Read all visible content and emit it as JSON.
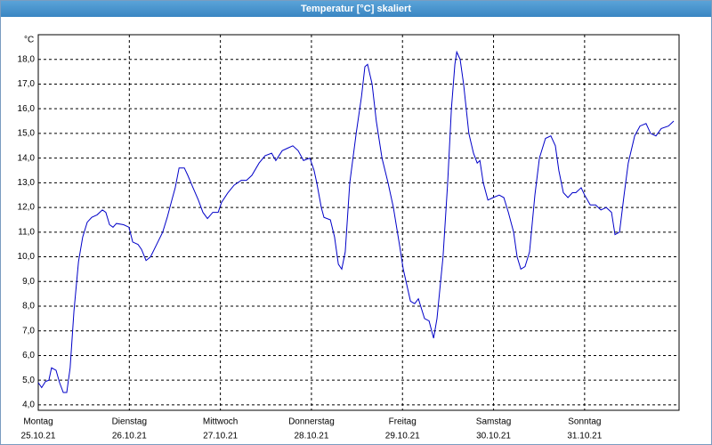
{
  "window_title": "Temperatur [°C] skaliert",
  "chart_data": {
    "type": "line",
    "y_unit": "°C",
    "x": [
      0,
      0.9,
      1.9,
      2.8,
      3.5,
      4.7,
      5.6,
      6.6,
      7.5,
      8.4,
      9.4,
      10.6,
      11.7,
      12.9,
      14.1,
      15.5,
      16.9,
      17.8,
      18.8,
      19.7,
      20.6,
      22.5,
      23.9,
      24.9,
      26.3,
      27.2,
      28.4,
      29.6,
      31.2,
      32.8,
      34.0,
      35.2,
      36.1,
      37.1,
      38.5,
      39.4,
      40.8,
      42.2,
      43.4,
      44.6,
      46.0,
      47.4,
      48.3,
      50.0,
      51.6,
      53.5,
      54.9,
      56.3,
      58.2,
      59.8,
      61.5,
      62.6,
      64.3,
      65.7,
      67.1,
      68.5,
      69.9,
      71.6,
      72.7,
      73.4,
      74.6,
      75.3,
      77.0,
      78.1,
      79.1,
      80.0,
      80.9,
      82.1,
      83.8,
      85.2,
      86.1,
      86.8,
      88.0,
      89.1,
      90.6,
      92.2,
      93.6,
      95.2,
      96.2,
      98.1,
      99.2,
      100.2,
      101.8,
      103.0,
      104.2,
      105.1,
      106.7,
      107.9,
      108.9,
      109.8,
      110.3,
      111.2,
      112.1,
      113.5,
      114.7,
      115.7,
      116.4,
      117.3,
      118.5,
      119.9,
      121.5,
      122.7,
      123.9,
      125.3,
      126.2,
      127.2,
      128.3,
      129.5,
      130.9,
      132.1,
      133.7,
      135.1,
      136.3,
      137.2,
      138.4,
      139.6,
      140.8,
      141.7,
      143.1,
      144.0,
      145.5,
      146.9,
      148.3,
      149.7,
      151.1,
      152.0,
      153.2,
      154.4,
      155.5,
      157.2,
      158.6,
      160.2,
      161.4,
      162.8,
      164.2,
      166.1,
      167.5
    ],
    "series": [
      {
        "name": "Temperatur",
        "color": "#0000c8",
        "values": [
          4.9,
          4.7,
          4.95,
          5.0,
          5.5,
          5.4,
          4.9,
          4.5,
          4.5,
          5.5,
          7.8,
          9.8,
          10.8,
          11.4,
          11.6,
          11.7,
          11.9,
          11.8,
          11.3,
          11.2,
          11.35,
          11.3,
          11.2,
          10.6,
          10.5,
          10.3,
          9.85,
          10.0,
          10.5,
          11.0,
          11.6,
          12.3,
          12.8,
          13.6,
          13.6,
          13.3,
          12.8,
          12.3,
          11.8,
          11.55,
          11.8,
          11.8,
          12.2,
          12.6,
          12.9,
          13.1,
          13.1,
          13.3,
          13.8,
          14.1,
          14.2,
          13.9,
          14.3,
          14.4,
          14.5,
          14.3,
          13.9,
          14.0,
          13.5,
          13.0,
          12.0,
          11.6,
          11.5,
          10.8,
          9.7,
          9.5,
          10.2,
          13.0,
          15.0,
          16.5,
          17.7,
          17.8,
          17.0,
          15.5,
          14.0,
          13.0,
          12.0,
          10.5,
          9.5,
          8.2,
          8.1,
          8.3,
          7.5,
          7.4,
          6.7,
          7.5,
          10.0,
          13.0,
          16.0,
          17.8,
          18.3,
          18.0,
          17.0,
          15.0,
          14.2,
          13.8,
          13.9,
          13.0,
          12.3,
          12.4,
          12.5,
          12.4,
          11.8,
          11.0,
          10.0,
          9.5,
          9.6,
          10.2,
          12.5,
          14.0,
          14.8,
          14.9,
          14.5,
          13.5,
          12.6,
          12.4,
          12.6,
          12.6,
          12.8,
          12.5,
          12.1,
          12.1,
          11.9,
          12.0,
          11.8,
          10.9,
          11.0,
          12.5,
          13.8,
          14.9,
          15.3,
          15.4,
          15.0,
          14.9,
          15.2,
          15.3,
          15.5
        ]
      }
    ],
    "xlim": [
      0,
      168.9
    ],
    "ylim": [
      3.78,
      19.0
    ],
    "xticks": [
      {
        "value": 0,
        "label": "Montag"
      },
      {
        "value": 24,
        "label": "Dienstag"
      },
      {
        "value": 48,
        "label": "Mittwoch"
      },
      {
        "value": 72,
        "label": "Donnerstag"
      },
      {
        "value": 96,
        "label": "Freitag"
      },
      {
        "value": 120,
        "label": "Samstag"
      },
      {
        "value": 144,
        "label": "Sonntag"
      }
    ],
    "xtick_dates": [
      "25.10.21",
      "26.10.21",
      "27.10.21",
      "28.10.21",
      "29.10.21",
      "30.10.21",
      "31.10.21"
    ],
    "yticks": [
      {
        "value": 4,
        "label": "4,0"
      },
      {
        "value": 5,
        "label": "5,0"
      },
      {
        "value": 6,
        "label": "6,0"
      },
      {
        "value": 7,
        "label": "7,0"
      },
      {
        "value": 8,
        "label": "8,0"
      },
      {
        "value": 9,
        "label": "9,0"
      },
      {
        "value": 10,
        "label": "10,0"
      },
      {
        "value": 11,
        "label": "11,0"
      },
      {
        "value": 12,
        "label": "12,0"
      },
      {
        "value": 13,
        "label": "13,0"
      },
      {
        "value": 14,
        "label": "14,0"
      },
      {
        "value": 15,
        "label": "15,0"
      },
      {
        "value": 16,
        "label": "16,0"
      },
      {
        "value": 17,
        "label": "17,0"
      },
      {
        "value": 18,
        "label": "18,0"
      }
    ],
    "grid": true
  }
}
